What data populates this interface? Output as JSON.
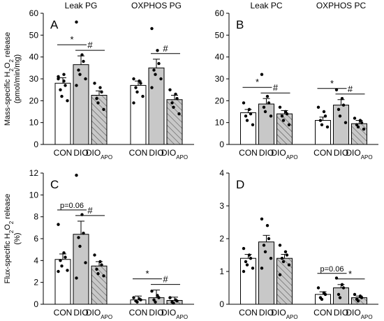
{
  "chart_data": [
    {
      "panel": "A",
      "type": "bar",
      "ylabel": "Mass-specific H2O2 release (pmol/min/mg)",
      "ylim": [
        0,
        60
      ],
      "yticks": [
        "0",
        "10",
        "20",
        "30",
        "40",
        "50",
        "60"
      ],
      "group_titles": [
        "Leak PG",
        "OXPHOS PG"
      ],
      "categories": [
        "CON",
        "DIO",
        "DIO"
      ],
      "category_sub": [
        "",
        "",
        "APO"
      ],
      "groups": [
        {
          "values": [
            28,
            36.5,
            22.5
          ],
          "errors": [
            2.5,
            4,
            2
          ],
          "points": [
            [
              31,
              29,
              27,
              25,
              22,
              20,
              30,
              32
            ],
            [
              56,
              41,
              38,
              34,
              32,
              30,
              27
            ],
            [
              28,
              26,
              24,
              21,
              19,
              16
            ]
          ],
          "sig": [
            {
              "from": 0,
              "to": 1,
              "label": "*"
            },
            {
              "from": 1,
              "to": 2,
              "label": "#"
            }
          ]
        },
        {
          "values": [
            27,
            35,
            20.5
          ],
          "errors": [
            2,
            4,
            2
          ],
          "points": [
            [
              30,
              29,
              28,
              26,
              24,
              22,
              19
            ],
            [
              53,
              43,
              37,
              34,
              32,
              30,
              26
            ],
            [
              25,
              23,
              21,
              19,
              17,
              14
            ]
          ],
          "sig": [
            {
              "from": 1,
              "to": 2,
              "label": "#"
            }
          ]
        }
      ]
    },
    {
      "panel": "B",
      "type": "bar",
      "ylim": [
        0,
        60
      ],
      "yticks": [
        "0",
        "10",
        "20",
        "30",
        "40",
        "50",
        "60"
      ],
      "group_titles": [
        "Leak PC",
        "OXPHOS PC"
      ],
      "categories": [
        "CON",
        "DIO",
        "DIO"
      ],
      "category_sub": [
        "",
        "",
        "APO"
      ],
      "groups": [
        {
          "values": [
            14.5,
            18.5,
            14
          ],
          "errors": [
            1.5,
            2.5,
            1.5
          ],
          "points": [
            [
              19,
              16,
              14,
              13,
              11,
              9
            ],
            [
              32,
              22,
              19,
              17,
              15,
              13
            ],
            [
              17,
              15,
              14,
              13,
              11,
              9
            ]
          ],
          "sig": [
            {
              "from": 0,
              "to": 1,
              "label": "*"
            },
            {
              "from": 1,
              "to": 2,
              "label": "#"
            }
          ]
        },
        {
          "values": [
            11,
            18,
            9.5
          ],
          "errors": [
            1.5,
            2.5,
            1.5
          ],
          "points": [
            [
              17,
              15,
              13,
              11,
              9,
              8
            ],
            [
              25,
              21,
              18,
              16,
              13,
              10
            ],
            [
              12,
              11,
              10,
              9,
              8,
              7
            ]
          ],
          "sig": [
            {
              "from": 0,
              "to": 1,
              "label": "*"
            },
            {
              "from": 1,
              "to": 2,
              "label": "#"
            }
          ]
        }
      ]
    },
    {
      "panel": "C",
      "type": "bar",
      "ylabel": "Flux-specific H2O2 release (%)",
      "ylim": [
        0,
        12
      ],
      "yticks": [
        "0",
        "2",
        "4",
        "6",
        "8",
        "10",
        "12"
      ],
      "categories": [
        "CON",
        "DIO",
        "DIO"
      ],
      "category_sub": [
        "",
        "",
        "APO"
      ],
      "groups": [
        {
          "values": [
            4.1,
            6.4,
            3.5
          ],
          "errors": [
            0.5,
            1.2,
            0.4
          ],
          "points": [
            [
              7.3,
              4.7,
              4.3,
              4.0,
              3.5,
              3.1,
              3.0
            ],
            [
              11.8,
              8.2,
              6.5,
              6.1,
              5.3,
              3.8,
              2.4
            ],
            [
              4.5,
              3.9,
              3.6,
              3.2,
              2.8,
              2.6
            ]
          ],
          "sig": [
            {
              "from": 0,
              "to": 1,
              "label": "p=0.06"
            },
            {
              "from": 1,
              "to": 2,
              "label": "#"
            }
          ]
        },
        {
          "values": [
            0.4,
            0.6,
            0.35
          ],
          "errors": [
            0.35,
            0.7,
            0.3
          ],
          "points": [
            [
              0.6,
              0.5,
              0.4,
              0.3,
              0.2
            ],
            [
              1.2,
              0.8,
              0.6,
              0.4,
              0.2
            ],
            [
              0.6,
              0.4,
              0.3,
              0.2,
              0.1
            ]
          ],
          "sig": [
            {
              "from": 0,
              "to": 1,
              "label": "*"
            },
            {
              "from": 1,
              "to": 2,
              "label": "#"
            }
          ]
        }
      ]
    },
    {
      "panel": "D",
      "type": "bar",
      "ylim": [
        0,
        4
      ],
      "yticks": [
        "0",
        "1",
        "2",
        "3",
        "4"
      ],
      "categories": [
        "CON",
        "DIO",
        "DIO"
      ],
      "category_sub": [
        "",
        "",
        "APO"
      ],
      "groups": [
        {
          "values": [
            1.4,
            1.9,
            1.4
          ],
          "errors": [
            0.12,
            0.2,
            0.12
          ],
          "points": [
            [
              1.7,
              1.5,
              1.4,
              1.3,
              1.2,
              1.1,
              1.0
            ],
            [
              2.6,
              2.4,
              2.0,
              1.8,
              1.6,
              1.4,
              1.1
            ],
            [
              1.8,
              1.6,
              1.5,
              1.4,
              1.3,
              1.2,
              0.9
            ]
          ],
          "sig": []
        },
        {
          "values": [
            0.3,
            0.5,
            0.2
          ],
          "errors": [
            0.08,
            0.1,
            0.05
          ],
          "points": [
            [
              0.5,
              0.35,
              0.3,
              0.2,
              0.15
            ],
            [
              0.8,
              0.6,
              0.5,
              0.3,
              0.2
            ],
            [
              0.3,
              0.25,
              0.2,
              0.15,
              0.1
            ]
          ],
          "sig": [
            {
              "from": 0,
              "to": 1,
              "label": "p=0.06"
            },
            {
              "from": 1,
              "to": 2,
              "label": "*"
            }
          ]
        }
      ]
    }
  ]
}
